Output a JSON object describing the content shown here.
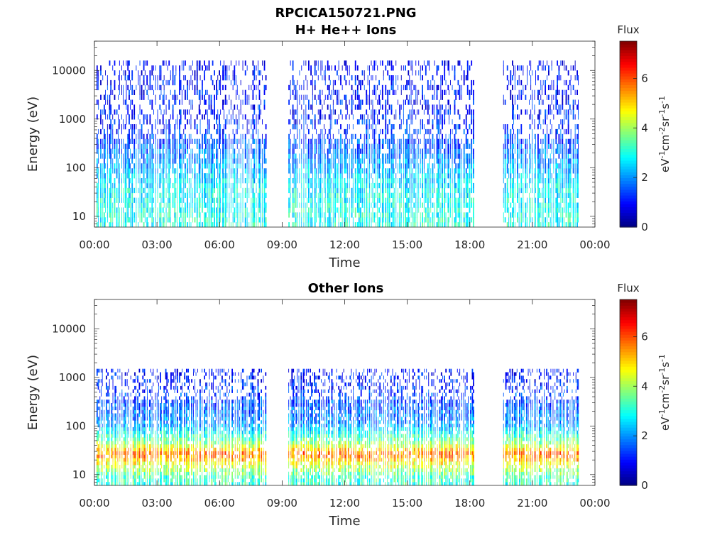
{
  "figure": {
    "title_line1": "RPCICA150721.PNG",
    "title_line2": "H+ He++ Ions"
  },
  "chart_data": [
    {
      "type": "heatmap",
      "title": "H+ He++ Ions",
      "xlabel": "Time",
      "ylabel": "Energy (eV)",
      "x_ticks": [
        "00:00",
        "03:00",
        "06:00",
        "09:00",
        "12:00",
        "15:00",
        "18:00",
        "21:00",
        "00:00"
      ],
      "x_range_hours": [
        0,
        24
      ],
      "y_scale": "log",
      "y_range_eV": [
        6,
        40000
      ],
      "y_ticks": [
        "10",
        "100",
        "1000",
        "10000"
      ],
      "colorbar": {
        "title": "Flux",
        "label": "eV-1cm-2sr-1s-1",
        "range": [
          0,
          7.5
        ],
        "ticks": [
          "0",
          "2",
          "4",
          "6"
        ],
        "colormap": "jet"
      },
      "data_coverage_hours": [
        [
          0.1,
          8.2
        ],
        [
          9.3,
          18.2
        ],
        [
          19.6,
          23.2
        ]
      ],
      "profile_by_energy": [
        {
          "energy_eV": 10,
          "flux": 3.0
        },
        {
          "energy_eV": 30,
          "flux": 2.8
        },
        {
          "energy_eV": 100,
          "flux": 2.2
        },
        {
          "energy_eV": 300,
          "flux": 1.5
        },
        {
          "energy_eV": 1000,
          "flux": 1.1
        },
        {
          "energy_eV": 5000,
          "flux": 1.0
        },
        {
          "energy_eV": 15000,
          "flux": 0.8
        }
      ]
    },
    {
      "type": "heatmap",
      "title": "Other Ions",
      "xlabel": "Time",
      "ylabel": "Energy (eV)",
      "x_ticks": [
        "00:00",
        "03:00",
        "06:00",
        "09:00",
        "12:00",
        "15:00",
        "18:00",
        "21:00",
        "00:00"
      ],
      "x_range_hours": [
        0,
        24
      ],
      "y_scale": "log",
      "y_range_eV": [
        6,
        40000
      ],
      "y_ticks": [
        "10",
        "100",
        "1000",
        "10000"
      ],
      "colorbar": {
        "title": "Flux",
        "label": "eV-1cm-2sr-1s-1",
        "range": [
          0,
          7.5
        ],
        "ticks": [
          "0",
          "2",
          "4",
          "6"
        ],
        "colormap": "jet"
      },
      "data_coverage_hours": [
        [
          0.1,
          8.2
        ],
        [
          9.3,
          18.2
        ],
        [
          19.6,
          23.2
        ]
      ],
      "profile_by_energy": [
        {
          "energy_eV": 8,
          "flux": 3.2
        },
        {
          "energy_eV": 15,
          "flux": 4.5
        },
        {
          "energy_eV": 25,
          "flux": 5.8
        },
        {
          "energy_eV": 40,
          "flux": 4.0
        },
        {
          "energy_eV": 100,
          "flux": 2.0
        },
        {
          "energy_eV": 500,
          "flux": 1.3
        },
        {
          "energy_eV": 1500,
          "flux": 0.8
        }
      ]
    }
  ]
}
